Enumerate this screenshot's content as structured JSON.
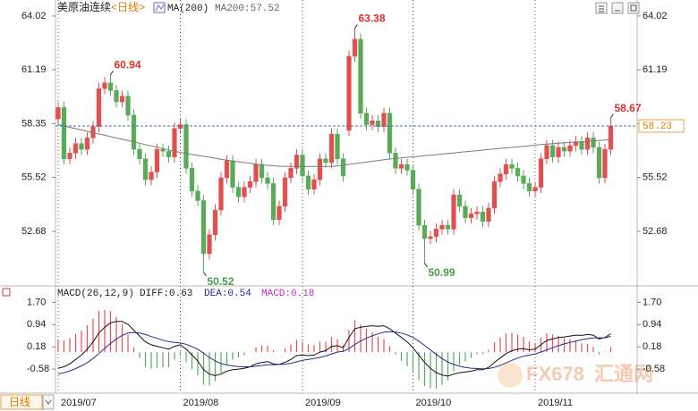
{
  "chart_data": {
    "type": "candlestick",
    "title": "美原油连续",
    "period": "<日线>",
    "period_button": "日线",
    "watermark": {
      "brand": "FX678",
      "name": "汇通网"
    },
    "categories": [
      "2019/07",
      null,
      null,
      null,
      null,
      null,
      null,
      null,
      null,
      null,
      null,
      null,
      null,
      null,
      null,
      null,
      null,
      null,
      null,
      null,
      null,
      "2019/08",
      null,
      null,
      null,
      null,
      null,
      null,
      null,
      null,
      null,
      null,
      null,
      null,
      null,
      null,
      null,
      null,
      null,
      null,
      null,
      null,
      "2019/09",
      null,
      null,
      null,
      null,
      null,
      null,
      null,
      null,
      null,
      null,
      null,
      null,
      null,
      null,
      null,
      null,
      null,
      null,
      "2019/10",
      null,
      null,
      null,
      null,
      null,
      null,
      null,
      null,
      null,
      null,
      null,
      null,
      null,
      null,
      null,
      null,
      null,
      null,
      null,
      null,
      "2019/11",
      null,
      null,
      null,
      null,
      null,
      null,
      null,
      null,
      null,
      null,
      null,
      null,
      null
    ],
    "open": [
      58.6,
      59.2,
      56.5,
      56.8,
      57.3,
      57.0,
      57.6,
      58.2,
      60.2,
      60.5,
      60.1,
      59.5,
      59.8,
      58.8,
      57.0,
      56.5,
      55.4,
      55.8,
      57.0,
      56.9,
      56.6,
      58.1,
      58.3,
      56.0,
      54.8,
      54.3,
      51.5,
      52.5,
      53.8,
      55.5,
      56.4,
      55.0,
      54.5,
      55.0,
      55.3,
      56.2,
      55.5,
      55.2,
      53.3,
      54.0,
      55.5,
      56.0,
      56.7,
      55.6,
      54.9,
      55.4,
      56.5,
      56.3,
      57.8,
      56.5,
      58.0,
      61.9,
      62.8,
      58.9,
      58.3,
      58.5,
      58.2,
      58.9,
      56.8,
      56.0,
      56.2,
      55.9,
      54.9,
      53.0,
      52.3,
      52.4,
      52.8,
      53.0,
      52.8,
      54.6,
      54.0,
      53.4,
      53.6,
      53.7,
      53.2,
      53.9,
      55.3,
      55.7,
      56.2,
      56.0,
      55.6,
      55.2,
      54.8,
      55.0,
      56.5,
      57.2,
      56.6,
      57.1,
      56.9,
      57.2,
      57.4,
      57.0,
      57.6,
      57.1,
      55.5,
      57.0
    ],
    "high": [
      59.5,
      59.5,
      57.1,
      57.6,
      57.6,
      57.9,
      58.5,
      60.5,
      60.8,
      60.94,
      60.4,
      60.1,
      60.1,
      59.1,
      57.3,
      56.8,
      56.1,
      57.3,
      57.3,
      57.2,
      58.4,
      58.6,
      58.6,
      56.3,
      55.1,
      54.6,
      52.8,
      54.1,
      55.8,
      56.7,
      56.7,
      55.3,
      55.3,
      55.6,
      56.5,
      56.5,
      55.8,
      55.5,
      54.3,
      55.8,
      56.3,
      57.0,
      57.0,
      55.9,
      55.7,
      56.8,
      56.8,
      58.1,
      58.1,
      56.8,
      62.2,
      63.38,
      63.1,
      59.2,
      58.8,
      58.8,
      59.2,
      59.2,
      57.1,
      56.5,
      56.5,
      56.2,
      55.2,
      53.3,
      52.7,
      53.1,
      53.3,
      53.3,
      54.9,
      54.9,
      54.3,
      53.9,
      54.0,
      54.0,
      54.2,
      55.6,
      56.0,
      56.5,
      56.5,
      56.3,
      55.9,
      55.5,
      55.3,
      56.8,
      57.5,
      57.5,
      57.4,
      57.4,
      57.5,
      57.7,
      57.7,
      57.9,
      57.9,
      57.4,
      57.3,
      58.67
    ],
    "low": [
      58.3,
      56.2,
      56.2,
      56.5,
      56.7,
      56.7,
      57.3,
      57.9,
      59.9,
      59.8,
      59.2,
      59.2,
      58.5,
      56.7,
      56.2,
      55.1,
      55.1,
      55.5,
      56.6,
      56.3,
      56.3,
      57.8,
      55.7,
      54.5,
      54.0,
      50.52,
      51.2,
      52.2,
      53.5,
      55.2,
      54.7,
      54.2,
      54.2,
      54.7,
      55.0,
      55.2,
      54.9,
      53.0,
      53.0,
      53.7,
      55.2,
      55.7,
      55.3,
      54.6,
      54.6,
      55.1,
      56.0,
      56.0,
      56.2,
      55.3,
      57.7,
      61.6,
      58.6,
      58.0,
      58.0,
      57.9,
      57.9,
      56.5,
      55.7,
      55.7,
      55.6,
      54.6,
      52.7,
      50.99,
      52.0,
      52.1,
      52.5,
      52.5,
      52.5,
      53.7,
      53.1,
      53.1,
      53.3,
      52.9,
      52.9,
      53.6,
      55.0,
      55.4,
      55.7,
      55.3,
      54.9,
      54.5,
      54.5,
      54.7,
      56.2,
      56.3,
      56.3,
      56.6,
      56.6,
      56.9,
      56.7,
      56.7,
      56.8,
      55.2,
      55.2,
      56.7
    ],
    "close": [
      59.2,
      56.5,
      56.8,
      57.3,
      57.0,
      57.6,
      58.2,
      60.2,
      60.5,
      60.1,
      59.5,
      59.8,
      58.8,
      57.0,
      56.5,
      55.4,
      55.8,
      57.0,
      56.9,
      56.6,
      58.1,
      58.3,
      56.0,
      54.8,
      54.3,
      51.5,
      52.5,
      53.8,
      55.5,
      56.4,
      55.0,
      54.5,
      55.0,
      55.3,
      56.2,
      55.5,
      55.2,
      53.3,
      54.0,
      55.5,
      56.0,
      56.7,
      55.6,
      54.9,
      55.4,
      56.5,
      56.3,
      57.8,
      56.5,
      55.6,
      61.9,
      62.8,
      58.9,
      58.3,
      58.5,
      58.2,
      58.9,
      56.8,
      56.0,
      56.2,
      55.9,
      54.9,
      53.0,
      52.3,
      52.4,
      52.8,
      53.0,
      52.8,
      54.6,
      54.0,
      53.4,
      53.6,
      53.7,
      53.2,
      53.9,
      55.3,
      55.7,
      56.2,
      56.0,
      55.6,
      55.2,
      54.8,
      55.0,
      56.5,
      57.2,
      56.6,
      57.1,
      56.9,
      57.2,
      57.4,
      57.0,
      57.6,
      57.1,
      55.5,
      57.0,
      58.23
    ],
    "close_label": "58.23",
    "colors": {
      "up": "#e05050",
      "down": "#5aaa5a"
    },
    "ylim": [
      49.9,
      64.77
    ],
    "yticks": [
      64.02,
      61.19,
      58.35,
      55.52,
      52.68
    ],
    "ma": {
      "name": "MA(200)",
      "label": "MA200:57.52",
      "color": "#7a7a7a",
      "values": [
        58.3,
        58.23,
        58.16,
        58.09,
        58.02,
        57.95,
        57.88,
        57.81,
        57.74,
        57.67,
        57.6,
        57.53,
        57.46,
        57.39,
        57.32,
        57.25,
        57.18,
        57.11,
        57.04,
        56.97,
        56.9,
        56.83,
        56.78,
        56.73,
        56.68,
        56.63,
        56.58,
        56.53,
        56.48,
        56.43,
        56.38,
        56.34,
        56.3,
        56.26,
        56.22,
        56.19,
        56.16,
        56.13,
        56.11,
        56.1,
        56.1,
        56.1,
        56.1,
        56.1,
        56.1,
        56.1,
        56.1,
        56.1,
        56.13,
        56.17,
        56.21,
        56.25,
        56.29,
        56.33,
        56.37,
        56.41,
        56.45,
        56.49,
        56.52,
        56.55,
        56.58,
        56.6,
        56.63,
        56.66,
        56.69,
        56.72,
        56.75,
        56.78,
        56.81,
        56.84,
        56.87,
        56.9,
        56.93,
        56.96,
        56.99,
        57.02,
        57.05,
        57.08,
        57.1,
        57.13,
        57.16,
        57.19,
        57.22,
        57.25,
        57.28,
        57.3,
        57.32,
        57.34,
        57.36,
        57.38,
        57.4,
        57.42,
        57.44,
        57.46,
        57.49,
        57.52
      ]
    },
    "annotations": [
      {
        "text": "60.94",
        "candle": 9,
        "at": "high"
      },
      {
        "text": "63.38",
        "candle": 51,
        "at": "high"
      },
      {
        "text": "50.52",
        "candle": 25,
        "at": "low"
      },
      {
        "text": "50.99",
        "candle": 63,
        "at": "low"
      },
      {
        "text": "58.67",
        "candle": 95,
        "at": "high"
      }
    ],
    "macd": {
      "title": "MACD(26,12,9)",
      "ylim": [
        -1.4,
        2.2
      ],
      "yticks": [
        {
          "value": 1.7,
          "label": "1.70"
        },
        0.94,
        0.18,
        -0.58
      ],
      "diff": {
        "label": "DIFF:0.63",
        "color": "#111111",
        "values": [
          -0.55,
          -0.5,
          -0.4,
          -0.25,
          -0.1,
          0.1,
          0.35,
          0.65,
          0.85,
          1.0,
          1.05,
          1.05,
          0.95,
          0.75,
          0.55,
          0.35,
          0.25,
          0.2,
          0.15,
          0.1,
          0.2,
          0.25,
          0.1,
          -0.1,
          -0.3,
          -0.6,
          -0.75,
          -0.8,
          -0.75,
          -0.65,
          -0.6,
          -0.58,
          -0.55,
          -0.5,
          -0.4,
          -0.35,
          -0.32,
          -0.4,
          -0.42,
          -0.35,
          -0.25,
          -0.12,
          -0.1,
          -0.12,
          -0.1,
          0.0,
          0.05,
          0.2,
          0.22,
          0.15,
          0.5,
          0.8,
          0.85,
          0.88,
          0.9,
          0.88,
          0.9,
          0.8,
          0.65,
          0.5,
          0.35,
          0.15,
          -0.1,
          -0.35,
          -0.55,
          -0.7,
          -0.78,
          -0.82,
          -0.75,
          -0.7,
          -0.68,
          -0.65,
          -0.6,
          -0.6,
          -0.52,
          -0.35,
          -0.2,
          -0.05,
          0.05,
          0.1,
          0.12,
          0.08,
          0.1,
          0.25,
          0.4,
          0.45,
          0.5,
          0.52,
          0.55,
          0.58,
          0.57,
          0.6,
          0.58,
          0.45,
          0.5,
          0.63
        ]
      },
      "dea": {
        "label": "DEA:0.54",
        "color": "#1f2f8f",
        "values": [
          -0.75,
          -0.7,
          -0.64,
          -0.56,
          -0.47,
          -0.36,
          -0.22,
          -0.05,
          0.13,
          0.3,
          0.45,
          0.57,
          0.65,
          0.67,
          0.65,
          0.6,
          0.53,
          0.47,
          0.41,
          0.36,
          0.33,
          0.31,
          0.27,
          0.19,
          0.1,
          -0.04,
          -0.18,
          -0.3,
          -0.39,
          -0.44,
          -0.47,
          -0.49,
          -0.5,
          -0.5,
          -0.48,
          -0.46,
          -0.43,
          -0.43,
          -0.42,
          -0.41,
          -0.38,
          -0.33,
          -0.28,
          -0.25,
          -0.22,
          -0.18,
          -0.13,
          -0.06,
          0.0,
          0.03,
          0.12,
          0.26,
          0.38,
          0.48,
          0.56,
          0.62,
          0.68,
          0.7,
          0.69,
          0.65,
          0.59,
          0.5,
          0.38,
          0.23,
          0.07,
          -0.08,
          -0.22,
          -0.34,
          -0.42,
          -0.48,
          -0.52,
          -0.55,
          -0.56,
          -0.57,
          -0.56,
          -0.52,
          -0.45,
          -0.37,
          -0.28,
          -0.2,
          -0.14,
          -0.1,
          -0.06,
          0.0,
          0.08,
          0.15,
          0.22,
          0.28,
          0.33,
          0.38,
          0.42,
          0.46,
          0.49,
          0.49,
          0.49,
          0.54
        ]
      },
      "hist": {
        "label": "MACD:0.18",
        "color": "#c030c0",
        "values": [
          0.4,
          0.4,
          0.48,
          0.62,
          0.74,
          0.92,
          1.14,
          1.4,
          1.44,
          1.4,
          1.2,
          0.96,
          0.6,
          0.16,
          -0.2,
          -0.5,
          -0.56,
          -0.54,
          -0.52,
          -0.52,
          -0.26,
          -0.12,
          -0.34,
          -0.58,
          -0.8,
          -1.12,
          -1.14,
          -1.0,
          -0.72,
          -0.42,
          -0.26,
          -0.18,
          -0.1,
          0.0,
          0.16,
          0.22,
          0.22,
          0.06,
          0.0,
          0.12,
          0.26,
          0.42,
          0.36,
          0.26,
          0.24,
          0.36,
          0.36,
          0.52,
          0.44,
          0.24,
          0.76,
          1.08,
          0.94,
          0.8,
          0.68,
          0.52,
          0.44,
          0.2,
          -0.08,
          -0.3,
          -0.48,
          -0.7,
          -0.96,
          -1.16,
          -1.24,
          -1.24,
          -1.12,
          -0.96,
          -0.66,
          -0.44,
          -0.32,
          -0.2,
          -0.08,
          -0.06,
          0.08,
          0.34,
          0.5,
          0.64,
          0.66,
          0.6,
          0.52,
          0.36,
          0.32,
          0.5,
          0.64,
          0.6,
          0.56,
          0.48,
          0.44,
          0.4,
          0.3,
          0.28,
          0.18,
          -0.08,
          0.02,
          0.18
        ]
      }
    }
  }
}
